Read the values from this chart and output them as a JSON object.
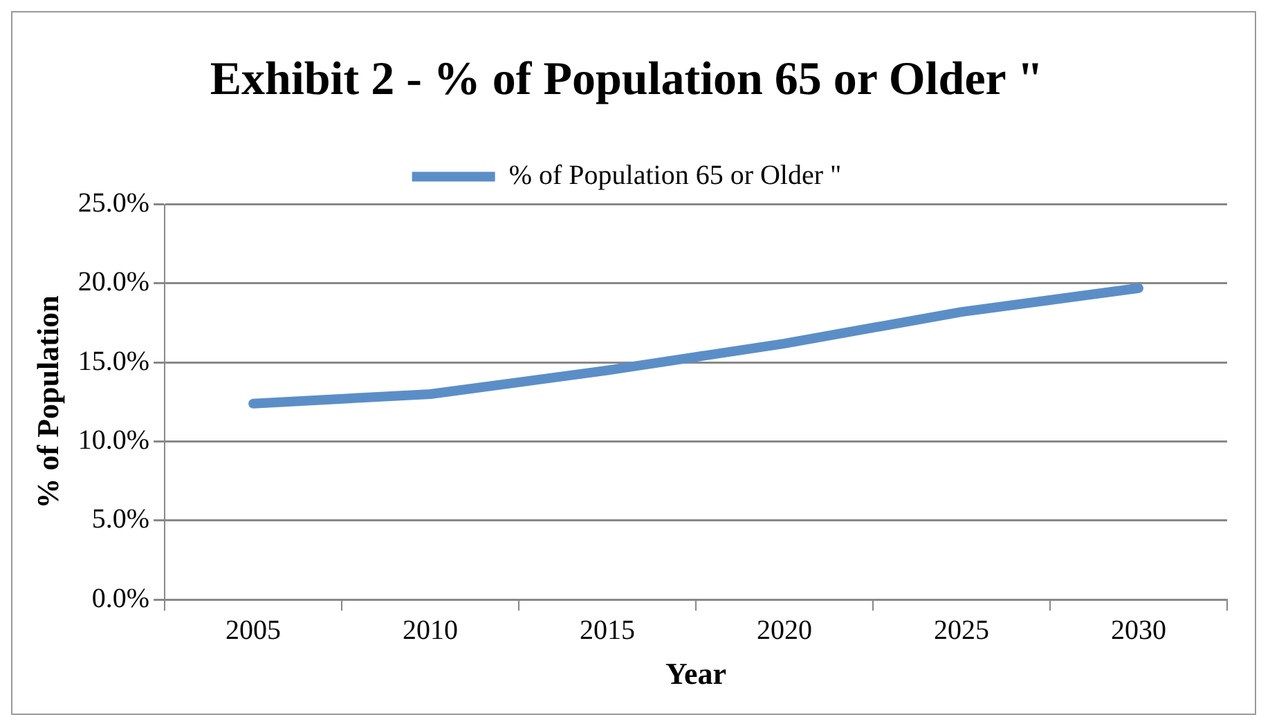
{
  "chart_data": {
    "type": "line",
    "title": "Exhibit 2 - % of Population 65 or Older \"",
    "xlabel": "Year",
    "ylabel": "% of Population",
    "categories": [
      "2005",
      "2010",
      "2015",
      "2020",
      "2025",
      "2030"
    ],
    "series": [
      {
        "name": "% of Population 65 or Older \"",
        "color": "#5b8ec7",
        "values": [
          12.4,
          13.0,
          14.5,
          16.2,
          18.2,
          19.7
        ]
      }
    ],
    "ylim": [
      0,
      25
    ],
    "yticks": [
      {
        "value": 0,
        "label": "0.0%"
      },
      {
        "value": 5,
        "label": "5.0%"
      },
      {
        "value": 10,
        "label": "10.0%"
      },
      {
        "value": 15,
        "label": "15.0%"
      },
      {
        "value": 20,
        "label": "20.0%"
      },
      {
        "value": 25,
        "label": "25.0%"
      }
    ],
    "grid": "y",
    "legend": "top",
    "marker": "none",
    "line_style": "solid"
  }
}
